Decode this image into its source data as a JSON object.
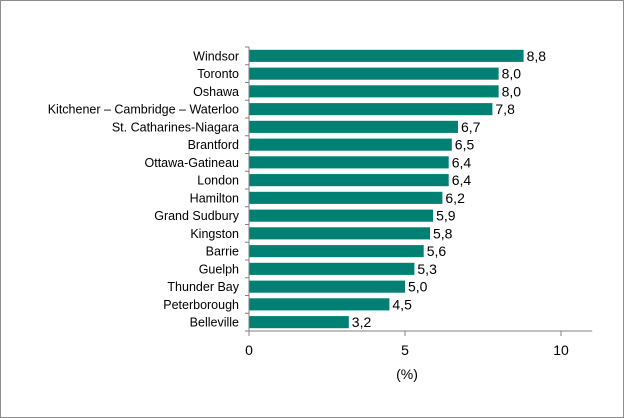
{
  "chart_data": {
    "type": "bar",
    "orientation": "horizontal",
    "categories": [
      "Windsor",
      "Toronto",
      "Oshawa",
      "Kitchener – Cambridge – Waterloo",
      "St. Catharines-Niagara",
      "Brantford",
      "Ottawa-Gatineau",
      "London",
      "Hamilton",
      "Grand Sudbury",
      "Kingston",
      "Barrie",
      "Guelph",
      "Thunder Bay",
      "Peterborough",
      "Belleville"
    ],
    "values": [
      8.8,
      8.0,
      8.0,
      7.8,
      6.7,
      6.5,
      6.4,
      6.4,
      6.2,
      5.9,
      5.8,
      5.6,
      5.3,
      5.0,
      4.5,
      3.2
    ],
    "value_labels": [
      "8,8",
      "8,0",
      "8,0",
      "7,8",
      "6,7",
      "6,5",
      "6,4",
      "6,4",
      "6,2",
      "5,9",
      "5,8",
      "5,6",
      "5,3",
      "5,0",
      "4,5",
      "3,2"
    ],
    "xlim": [
      0,
      11
    ],
    "xticks": [
      0,
      5,
      10
    ],
    "xtick_labels": [
      "0",
      "5",
      "10"
    ],
    "xlabel": "(%)",
    "bar_color": "#007f73",
    "grid": false,
    "legend": "none"
  }
}
